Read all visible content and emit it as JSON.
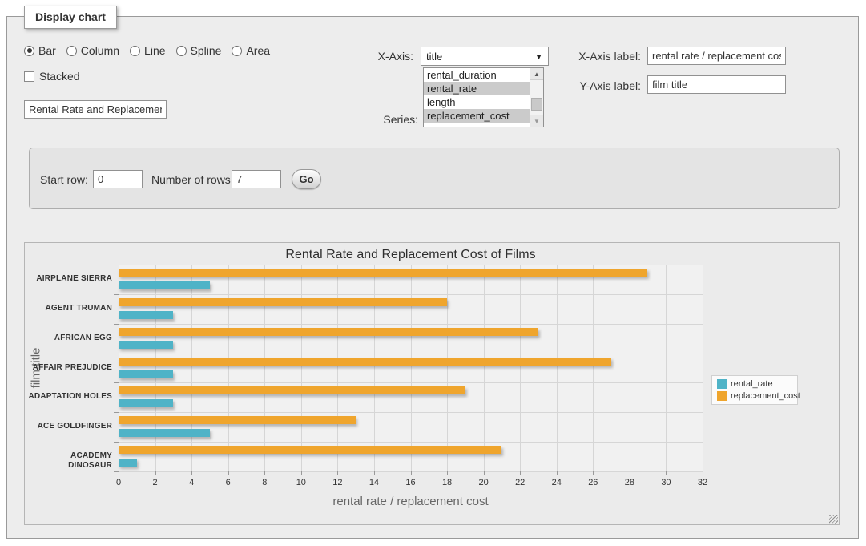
{
  "window": {
    "tab_label": "Display chart"
  },
  "controls": {
    "chart_types": [
      {
        "label": "Bar",
        "selected": true
      },
      {
        "label": "Column",
        "selected": false
      },
      {
        "label": "Line",
        "selected": false
      },
      {
        "label": "Spline",
        "selected": false
      },
      {
        "label": "Area",
        "selected": false
      }
    ],
    "stacked_label": "Stacked",
    "stacked_checked": false,
    "chart_title_value": "Rental Rate and Replacement Cost of Films",
    "x_axis_label_text": "X-Axis:",
    "x_axis_selected": "title",
    "series_label_text": "Series:",
    "series_options": [
      {
        "label": "rental_duration",
        "selected": false
      },
      {
        "label": "rental_rate",
        "selected": true
      },
      {
        "label": "length",
        "selected": false
      },
      {
        "label": "replacement_cost",
        "selected": true
      }
    ],
    "x_axis_caption_label": "X-Axis label:",
    "x_axis_caption_value": "rental rate / replacement cost",
    "y_axis_caption_label": "Y-Axis label:",
    "y_axis_caption_value": "film title"
  },
  "row_controls": {
    "start_row_label": "Start row:",
    "start_row_value": "0",
    "number_of_rows_label": "Number of rows:",
    "number_of_rows_value": "7",
    "go_button_label": "Go"
  },
  "chart_data": {
    "type": "bar",
    "orientation": "horizontal",
    "title": "Rental Rate and Replacement Cost of Films",
    "xlabel": "rental rate / replacement cost",
    "ylabel": "film title",
    "categories": [
      "AIRPLANE SIERRA",
      "AGENT TRUMAN",
      "AFRICAN EGG",
      "AFFAIR PREJUDICE",
      "ADAPTATION HOLES",
      "ACE GOLDFINGER",
      "ACADEMY DINOSAUR"
    ],
    "series": [
      {
        "name": "rental_rate",
        "color": "#4FB3C7",
        "values": [
          4.99,
          2.99,
          2.99,
          2.99,
          2.99,
          4.99,
          0.99
        ]
      },
      {
        "name": "replacement_cost",
        "color": "#EFA52D",
        "values": [
          28.99,
          17.99,
          22.99,
          26.99,
          18.99,
          12.99,
          20.99
        ]
      }
    ],
    "xlim": [
      0,
      32
    ],
    "x_tick_step": 2,
    "grid": true,
    "legend_position": "right",
    "bar_order_top_to_bottom": [
      "replacement_cost",
      "rental_rate"
    ]
  }
}
